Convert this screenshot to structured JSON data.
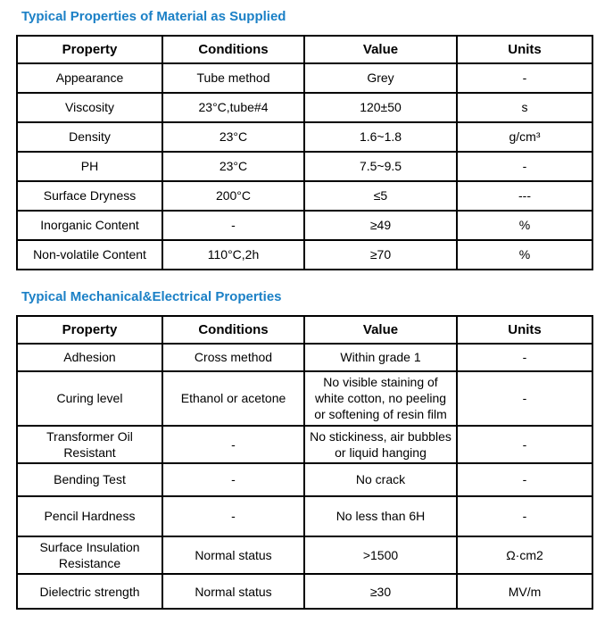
{
  "colors": {
    "heading_blue": "#1b80c6",
    "table_border": "#000000",
    "text": "#000000",
    "background": "#ffffff"
  },
  "sections": [
    {
      "heading": "Typical Properties of Material as Supplied",
      "columns": [
        "Property",
        "Conditions",
        "Value",
        "Units"
      ],
      "rows": [
        [
          "Appearance",
          "Tube method",
          "Grey",
          "-"
        ],
        [
          "Viscosity",
          "23°C,tube#4",
          "120±50",
          "s"
        ],
        [
          "Density",
          "23°C",
          "1.6~1.8",
          "g/cm³"
        ],
        [
          "PH",
          "23°C",
          "7.5~9.5",
          "-"
        ],
        [
          "Surface Dryness",
          "200°C",
          "≤5",
          "---"
        ],
        [
          "Inorganic Content",
          "-",
          "≥49",
          "%"
        ],
        [
          "Non-volatile Content",
          "110°C,2h",
          "≥70",
          "%"
        ]
      ]
    },
    {
      "heading": "Typical Mechanical&Electrical Properties",
      "columns": [
        "Property",
        "Conditions",
        "Value",
        "Units"
      ],
      "rows": [
        [
          "Adhesion",
          "Cross method",
          "Within grade 1",
          "-"
        ],
        [
          "Curing level",
          "Ethanol or acetone",
          "No visible staining of\nwhite cotton, no peeling\nor softening of resin film",
          "-"
        ],
        [
          "Transformer Oil\nResistant",
          "-",
          "No stickiness, air bubbles\nor liquid hanging",
          "-"
        ],
        [
          "Bending Test",
          "-",
          "No crack",
          "-"
        ],
        [
          "Pencil Hardness",
          "-",
          "No less than 6H",
          "-"
        ],
        [
          "Surface Insulation\nResistance",
          "Normal status",
          ">1500",
          "Ω·cm2"
        ],
        [
          "Dielectric strength",
          "Normal status",
          "≥30",
          "MV/m"
        ]
      ]
    }
  ]
}
